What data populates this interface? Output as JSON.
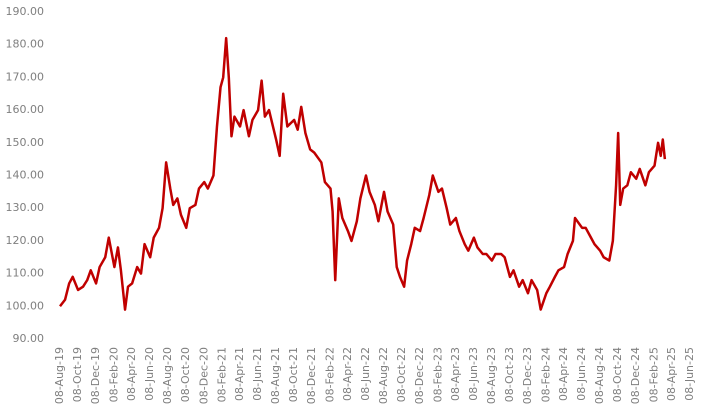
{
  "chart_data": {
    "type": "line",
    "x": [
      "2019-08-08",
      "2019-08-25",
      "2019-09-08",
      "2019-09-20",
      "2019-10-08",
      "2019-10-25",
      "2019-11-08",
      "2019-11-20",
      "2019-12-08",
      "2019-12-20",
      "2020-01-08",
      "2020-01-20",
      "2020-02-08",
      "2020-02-20",
      "2020-03-01",
      "2020-03-15",
      "2020-03-25",
      "2020-04-08",
      "2020-04-25",
      "2020-05-08",
      "2020-05-20",
      "2020-06-08",
      "2020-06-20",
      "2020-07-08",
      "2020-07-20",
      "2020-08-01",
      "2020-08-15",
      "2020-08-25",
      "2020-09-08",
      "2020-09-20",
      "2020-10-08",
      "2020-10-20",
      "2020-11-08",
      "2020-11-20",
      "2020-12-08",
      "2020-12-20",
      "2021-01-08",
      "2021-01-20",
      "2021-02-01",
      "2021-02-10",
      "2021-02-20",
      "2021-03-01",
      "2021-03-10",
      "2021-03-20",
      "2021-04-08",
      "2021-04-20",
      "2021-05-08",
      "2021-05-20",
      "2021-06-08",
      "2021-06-20",
      "2021-07-01",
      "2021-07-15",
      "2021-08-08",
      "2021-08-20",
      "2021-09-01",
      "2021-09-15",
      "2021-10-08",
      "2021-10-20",
      "2021-11-01",
      "2021-11-15",
      "2021-12-01",
      "2021-12-15",
      "2022-01-08",
      "2022-01-20",
      "2022-02-08",
      "2022-02-15",
      "2022-02-24",
      "2022-03-08",
      "2022-03-20",
      "2022-04-08",
      "2022-04-20",
      "2022-05-08",
      "2022-05-20",
      "2022-06-08",
      "2022-06-20",
      "2022-07-08",
      "2022-07-20",
      "2022-08-08",
      "2022-08-20",
      "2022-09-08",
      "2022-09-20",
      "2022-10-01",
      "2022-10-15",
      "2022-10-25",
      "2022-11-08",
      "2022-11-20",
      "2022-12-08",
      "2022-12-20",
      "2023-01-08",
      "2023-01-20",
      "2023-02-08",
      "2023-02-20",
      "2023-03-08",
      "2023-03-20",
      "2023-04-08",
      "2023-04-20",
      "2023-05-08",
      "2023-05-20",
      "2023-06-08",
      "2023-06-20",
      "2023-07-08",
      "2023-07-20",
      "2023-08-08",
      "2023-08-20",
      "2023-09-08",
      "2023-09-20",
      "2023-10-08",
      "2023-10-20",
      "2023-11-08",
      "2023-11-20",
      "2023-12-08",
      "2023-12-20",
      "2024-01-08",
      "2024-01-20",
      "2024-02-08",
      "2024-02-20",
      "2024-03-08",
      "2024-03-20",
      "2024-04-08",
      "2024-04-20",
      "2024-05-08",
      "2024-05-15",
      "2024-06-08",
      "2024-06-20",
      "2024-07-08",
      "2024-07-20",
      "2024-08-08",
      "2024-08-20",
      "2024-09-08",
      "2024-09-20",
      "2024-10-01",
      "2024-10-08",
      "2024-10-15",
      "2024-10-25",
      "2024-11-08",
      "2024-11-20",
      "2024-12-08",
      "2024-12-20",
      "2025-01-08",
      "2025-01-20",
      "2025-02-08",
      "2025-02-20",
      "2025-03-01",
      "2025-03-08",
      "2025-03-15"
    ],
    "series": [
      {
        "color": "#c00000",
        "values": [
          100,
          102,
          107,
          109,
          105,
          106,
          108,
          111,
          107,
          112,
          115,
          121,
          112,
          118,
          111,
          99,
          106,
          107,
          112,
          110,
          119,
          115,
          121,
          124,
          130,
          144,
          136,
          131,
          133,
          128,
          124,
          130,
          131,
          136,
          138,
          136,
          140,
          155,
          167,
          170,
          182,
          170,
          152,
          158,
          155,
          160,
          152,
          157,
          160,
          169,
          158,
          160,
          151,
          146,
          165,
          155,
          157,
          154,
          161,
          153,
          148,
          147,
          144,
          138,
          136,
          129,
          108,
          133,
          127,
          123,
          120,
          126,
          133,
          140,
          135,
          131,
          126,
          135,
          129,
          125,
          112,
          109,
          106,
          114,
          119,
          124,
          123,
          127,
          134,
          140,
          135,
          136,
          130,
          125,
          127,
          123,
          119,
          117,
          121,
          118,
          116,
          116,
          114,
          116,
          116,
          115,
          109,
          111,
          106,
          108,
          104,
          108,
          105,
          99,
          104,
          106,
          109,
          111,
          112,
          116,
          120,
          127,
          124,
          124,
          121,
          119,
          117,
          115,
          114,
          120,
          137,
          153,
          131,
          136,
          137,
          141,
          139,
          142,
          137,
          141,
          143,
          150,
          146,
          151,
          145
        ]
      }
    ],
    "xlim": [
      "2019-08-08",
      "2025-06-08"
    ],
    "xticks": [
      {
        "value": "2019-08-08",
        "label": "08-Aug-19"
      },
      {
        "value": "2019-10-08",
        "label": "08-Oct-19"
      },
      {
        "value": "2019-12-08",
        "label": "08-Dec-19"
      },
      {
        "value": "2020-02-08",
        "label": "08-Feb-20"
      },
      {
        "value": "2020-04-08",
        "label": "08-Apr-20"
      },
      {
        "value": "2020-06-08",
        "label": "08-Jun-20"
      },
      {
        "value": "2020-08-08",
        "label": "08-Aug-20"
      },
      {
        "value": "2020-10-08",
        "label": "08-Oct-20"
      },
      {
        "value": "2020-12-08",
        "label": "08-Dec-20"
      },
      {
        "value": "2021-02-08",
        "label": "08-Feb-21"
      },
      {
        "value": "2021-04-08",
        "label": "08-Apr-21"
      },
      {
        "value": "2021-06-08",
        "label": "08-Jun-21"
      },
      {
        "value": "2021-08-08",
        "label": "08-Aug-21"
      },
      {
        "value": "2021-10-08",
        "label": "08-Oct-21"
      },
      {
        "value": "2021-12-08",
        "label": "08-Dec-21"
      },
      {
        "value": "2022-02-08",
        "label": "08-Feb-22"
      },
      {
        "value": "2022-04-08",
        "label": "08-Apr-22"
      },
      {
        "value": "2022-06-08",
        "label": "08-Jun-22"
      },
      {
        "value": "2022-08-08",
        "label": "08-Aug-22"
      },
      {
        "value": "2022-10-08",
        "label": "08-Oct-22"
      },
      {
        "value": "2022-12-08",
        "label": "08-Dec-22"
      },
      {
        "value": "2023-02-08",
        "label": "08-Feb-23"
      },
      {
        "value": "2023-04-08",
        "label": "08-Apr-23"
      },
      {
        "value": "2023-06-08",
        "label": "08-Jun-23"
      },
      {
        "value": "2023-08-08",
        "label": "08-Aug-23"
      },
      {
        "value": "2023-10-08",
        "label": "08-Oct-23"
      },
      {
        "value": "2023-12-08",
        "label": "08-Dec-23"
      },
      {
        "value": "2024-02-08",
        "label": "08-Feb-24"
      },
      {
        "value": "2024-04-08",
        "label": "08-Apr-24"
      },
      {
        "value": "2024-06-08",
        "label": "08-Jun-24"
      },
      {
        "value": "2024-08-08",
        "label": "08-Aug-24"
      },
      {
        "value": "2024-10-08",
        "label": "08-Oct-24"
      },
      {
        "value": "2024-12-08",
        "label": "08-Dec-24"
      },
      {
        "value": "2025-02-08",
        "label": "08-Feb-25"
      },
      {
        "value": "2025-04-08",
        "label": "08-Apr-25"
      },
      {
        "value": "2025-06-08",
        "label": "08-Jun-25"
      }
    ],
    "ylim": [
      90,
      190
    ],
    "yticks": [
      {
        "value": 90,
        "label": "90.00"
      },
      {
        "value": 100,
        "label": "100.00"
      },
      {
        "value": 110,
        "label": "110.00"
      },
      {
        "value": 120,
        "label": "120.00"
      },
      {
        "value": 130,
        "label": "130.00"
      },
      {
        "value": 140,
        "label": "140.00"
      },
      {
        "value": 150,
        "label": "150.00"
      },
      {
        "value": 160,
        "label": "160.00"
      },
      {
        "value": 170,
        "label": "170.00"
      },
      {
        "value": 180,
        "label": "180.00"
      },
      {
        "value": 190,
        "label": "190.00"
      }
    ],
    "grid": false
  }
}
